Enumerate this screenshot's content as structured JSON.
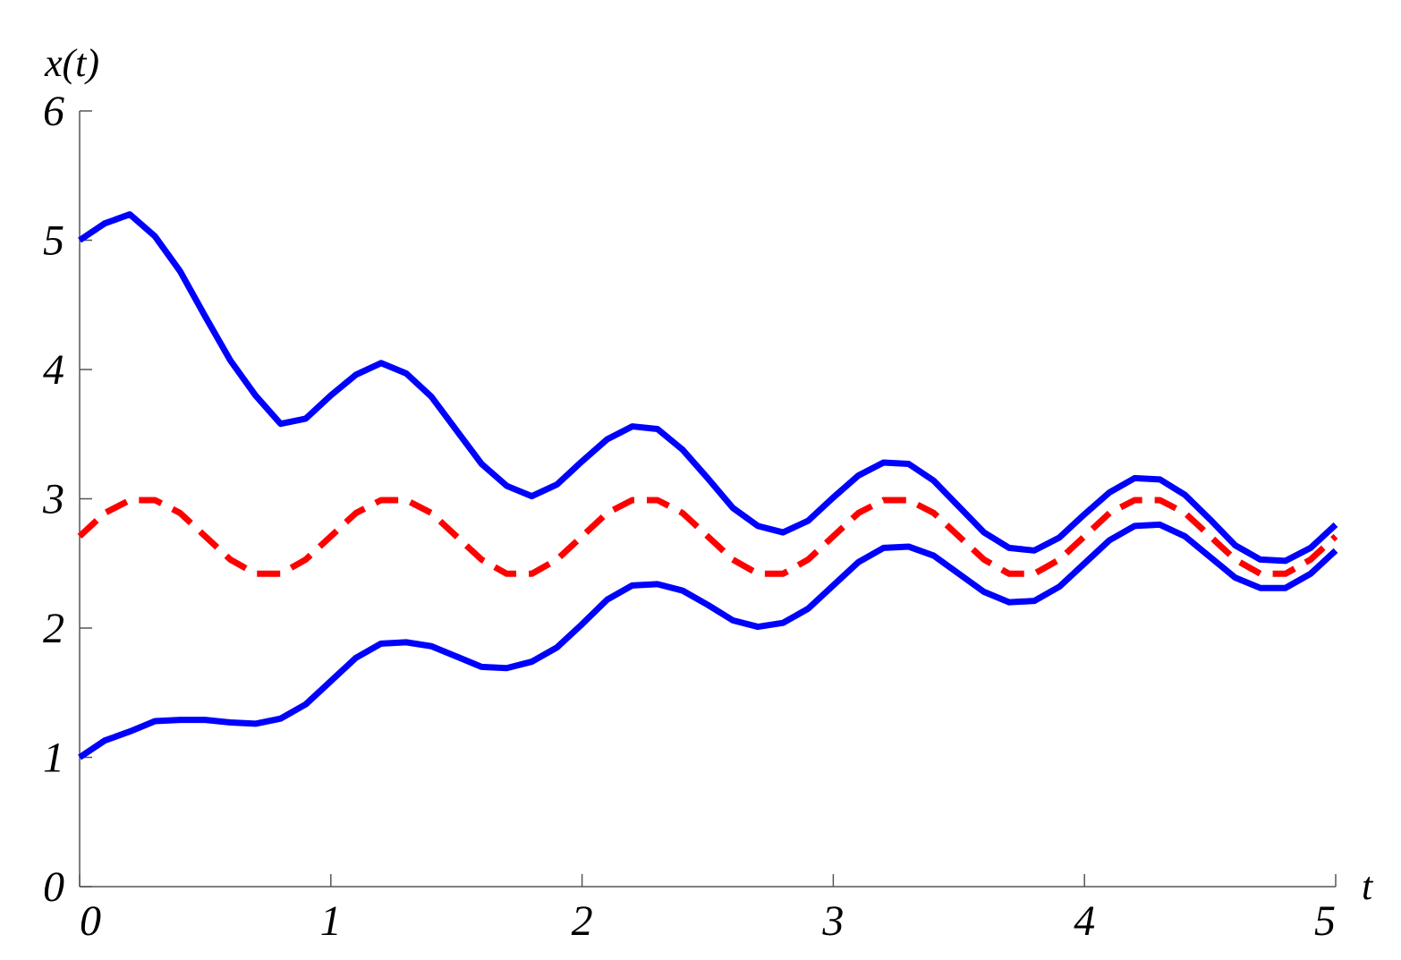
{
  "chart_data": {
    "type": "line",
    "x_label": "t",
    "y_label": "x(t)",
    "x": [
      0,
      0.1,
      0.2,
      0.3,
      0.4,
      0.5,
      0.6,
      0.7,
      0.8,
      0.9,
      1,
      1.1,
      1.2,
      1.3,
      1.4,
      1.5,
      1.6,
      1.7,
      1.8,
      1.9,
      2,
      2.1,
      2.2,
      2.3,
      2.4,
      2.5,
      2.6,
      2.7,
      2.8,
      2.9,
      3,
      3.1,
      3.2,
      3.3,
      3.4,
      3.5,
      3.6,
      3.7,
      3.8,
      3.9,
      4,
      4.1,
      4.2,
      4.3,
      4.4,
      4.5,
      4.6,
      4.7,
      4.8,
      4.9,
      5
    ],
    "series": [
      {
        "color": "#0000ff",
        "style": "solid",
        "values": [
          5.0,
          5.13,
          5.2,
          5.03,
          4.76,
          4.41,
          4.07,
          3.8,
          3.58,
          3.62,
          3.8,
          3.96,
          4.05,
          3.97,
          3.79,
          3.53,
          3.27,
          3.1,
          3.02,
          3.11,
          3.29,
          3.46,
          3.56,
          3.54,
          3.38,
          3.16,
          2.93,
          2.79,
          2.74,
          2.83,
          3.01,
          3.18,
          3.28,
          3.27,
          3.14,
          2.94,
          2.74,
          2.62,
          2.6,
          2.7,
          2.88,
          3.05,
          3.16,
          3.15,
          3.03,
          2.84,
          2.64,
          2.53,
          2.52,
          2.62,
          2.8
        ]
      },
      {
        "color": "#0000ff",
        "style": "solid",
        "values": [
          1.0,
          1.13,
          1.2,
          1.28,
          1.29,
          1.29,
          1.27,
          1.26,
          1.3,
          1.41,
          1.59,
          1.77,
          1.88,
          1.89,
          1.86,
          1.78,
          1.7,
          1.69,
          1.74,
          1.85,
          2.03,
          2.22,
          2.33,
          2.34,
          2.29,
          2.18,
          2.06,
          2.01,
          2.04,
          2.15,
          2.33,
          2.51,
          2.62,
          2.63,
          2.56,
          2.42,
          2.28,
          2.2,
          2.21,
          2.32,
          2.5,
          2.68,
          2.79,
          2.8,
          2.71,
          2.55,
          2.39,
          2.31,
          2.31,
          2.42,
          2.6
        ]
      },
      {
        "color": "#ff0000",
        "style": "dashed",
        "values": [
          2.71,
          2.89,
          2.99,
          2.99,
          2.89,
          2.71,
          2.53,
          2.42,
          2.42,
          2.53,
          2.71,
          2.89,
          2.99,
          2.99,
          2.89,
          2.71,
          2.53,
          2.42,
          2.42,
          2.53,
          2.71,
          2.89,
          2.99,
          2.99,
          2.89,
          2.71,
          2.53,
          2.42,
          2.42,
          2.53,
          2.71,
          2.89,
          2.99,
          2.99,
          2.89,
          2.71,
          2.53,
          2.42,
          2.42,
          2.53,
          2.71,
          2.89,
          2.99,
          2.99,
          2.89,
          2.71,
          2.53,
          2.42,
          2.42,
          2.53,
          2.71
        ]
      }
    ],
    "xlim": [
      0,
      5
    ],
    "xticks": [
      0,
      1,
      2,
      3,
      4,
      5
    ],
    "ylim": [
      0,
      6
    ],
    "yticks": [
      0,
      1,
      2,
      3,
      4,
      5,
      6
    ],
    "grid": false
  }
}
